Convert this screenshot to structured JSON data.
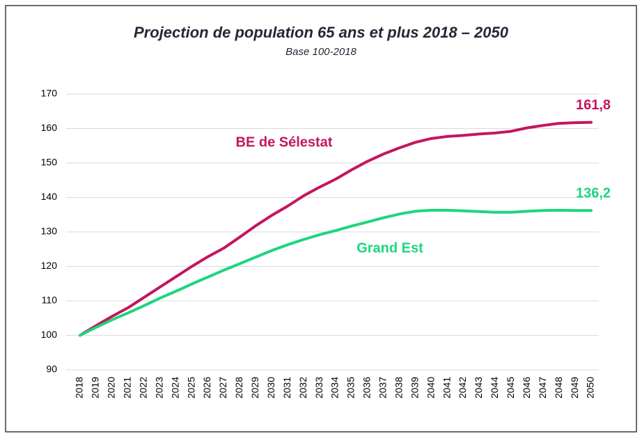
{
  "chart_data": {
    "type": "line",
    "title": "Projection de population 65 ans et plus 2018 – 2050",
    "subtitle": "Base 100-2018",
    "categories": [
      "2018",
      "2019",
      "2020",
      "2021",
      "2022",
      "2023",
      "2024",
      "2025",
      "2026",
      "2027",
      "2028",
      "2029",
      "2030",
      "2031",
      "2032",
      "2033",
      "2034",
      "2035",
      "2036",
      "2037",
      "2038",
      "2039",
      "2040",
      "2041",
      "2042",
      "2043",
      "2044",
      "2045",
      "2046",
      "2047",
      "2048",
      "2049",
      "2050"
    ],
    "series": [
      {
        "name": "BE de Sélestat",
        "color": "#c3165f",
        "values": [
          100,
          102.8,
          105.5,
          108,
          111,
          114,
          117,
          120,
          122.8,
          125.3,
          128.5,
          131.8,
          134.8,
          137.5,
          140.5,
          143,
          145.3,
          148,
          150.5,
          152.6,
          154.4,
          156,
          157.1,
          157.7,
          158,
          158.4,
          158.7,
          159.2,
          160.2,
          160.9,
          161.5,
          161.7,
          161.8
        ],
        "value_labels": [
          null,
          null,
          null,
          null,
          null,
          null,
          null,
          null,
          null,
          null,
          null,
          null,
          null,
          null,
          null,
          null,
          null,
          null,
          null,
          null,
          null,
          null,
          null,
          null,
          null,
          null,
          null,
          null,
          null,
          null,
          null,
          null,
          "161,8"
        ]
      },
      {
        "name": "Grand Est",
        "color": "#1cd67c",
        "values": [
          100,
          102.3,
          104.5,
          106.5,
          108.6,
          110.8,
          112.8,
          114.9,
          116.9,
          118.9,
          120.8,
          122.7,
          124.6,
          126.3,
          127.8,
          129.2,
          130.4,
          131.7,
          132.9,
          134.1,
          135.2,
          136,
          136.3,
          136.3,
          136.1,
          135.9,
          135.7,
          135.7,
          136,
          136.2,
          136.3,
          136.2,
          136.2
        ],
        "value_labels": [
          null,
          null,
          null,
          null,
          null,
          null,
          null,
          null,
          null,
          null,
          null,
          null,
          null,
          null,
          null,
          null,
          null,
          null,
          null,
          null,
          null,
          null,
          null,
          null,
          null,
          null,
          null,
          null,
          null,
          null,
          null,
          null,
          "136,2"
        ]
      }
    ],
    "ylim": [
      90,
      170
    ],
    "yticks": [
      90,
      100,
      110,
      120,
      130,
      140,
      150,
      160,
      170
    ],
    "grid": true
  }
}
